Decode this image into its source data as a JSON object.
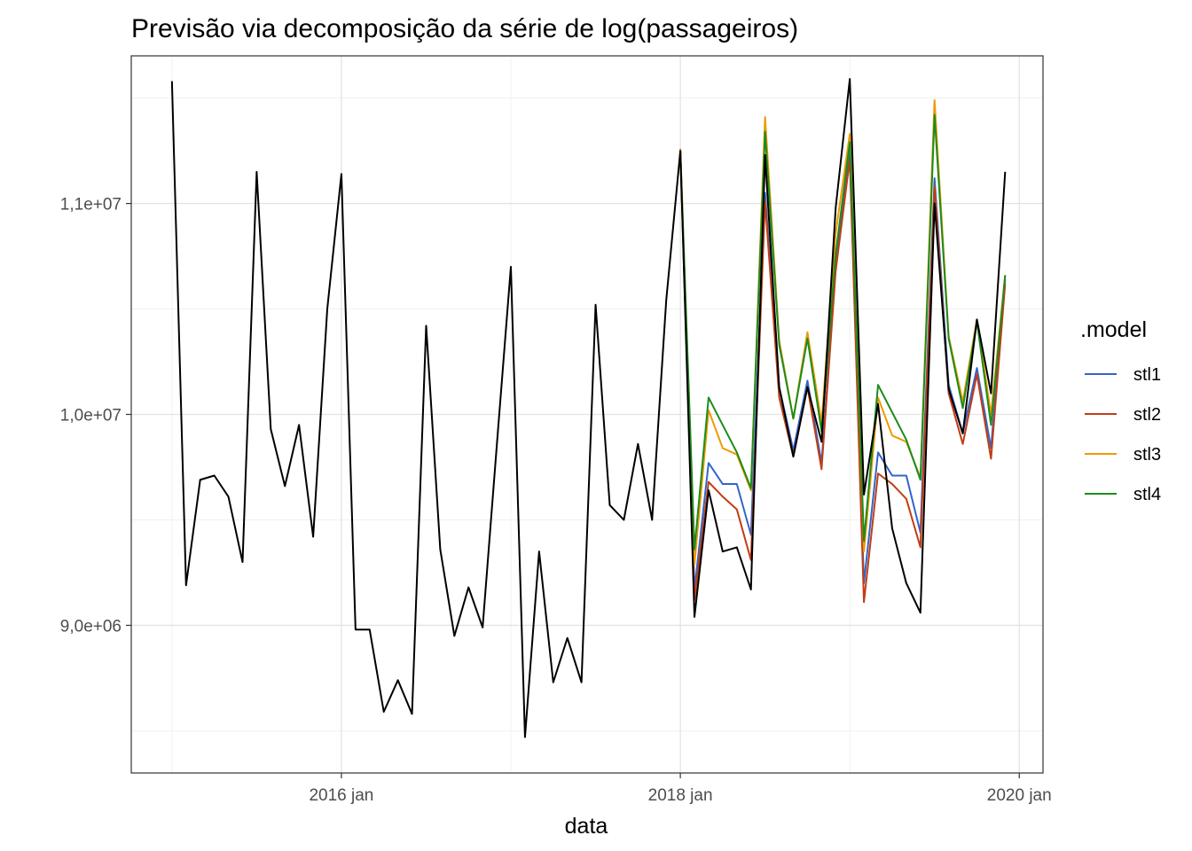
{
  "chart_data": {
    "type": "line",
    "title": "Previsão via decomposição da série de log(passageiros)",
    "xlabel": "data",
    "ylabel": "",
    "x_ticks": [
      {
        "label": "2016 jan",
        "value": 2016.0
      },
      {
        "label": "2018 jan",
        "value": 2018.0
      },
      {
        "label": "2020 jan",
        "value": 2020.0
      }
    ],
    "y_ticks": [
      {
        "label": "9,0e+06",
        "value": 9000000
      },
      {
        "label": "1,0e+07",
        "value": 10000000
      },
      {
        "label": "1,1e+07",
        "value": 11000000
      }
    ],
    "xlim": [
      2014.76,
      2020.14
    ],
    "ylim": [
      8300000,
      11700000
    ],
    "grid": true,
    "legend": {
      "title": ".model",
      "position": "right",
      "entries": [
        {
          "label": "stl1",
          "color": "#3465c7"
        },
        {
          "label": "stl2",
          "color": "#c13d15"
        },
        {
          "label": "stl3",
          "color": "#ee9a00"
        },
        {
          "label": "stl4",
          "color": "#1e8b1e"
        }
      ]
    },
    "observed": {
      "color": "#000000",
      "x_start": 2015.0,
      "step": 0.0833333,
      "values": [
        11580000,
        9190000,
        9690000,
        9710000,
        9610000,
        9300000,
        11150000,
        9930000,
        9660000,
        9950000,
        9420000,
        10500000,
        11140000,
        8980000,
        8980000,
        8590000,
        8740000,
        8580000,
        10420000,
        9360000,
        8950000,
        9180000,
        8990000,
        9850000,
        10700000,
        8470000,
        9350000,
        8730000,
        8940000,
        8730000,
        10520000,
        9570000,
        9500000,
        9860000,
        9500000,
        10540000,
        11250000,
        9040000,
        9640000,
        9350000,
        9370000,
        9170000,
        11230000,
        10130000,
        9800000,
        10130000,
        9870000,
        10980000,
        11590000,
        9620000,
        10050000,
        9460000,
        9200000,
        9060000,
        11000000,
        10120000,
        9910000,
        10450000,
        10100000,
        11150000
      ]
    },
    "series": [
      {
        "name": "stl1",
        "color": "#3465c7",
        "x_start": 2018.0,
        "step": 0.0833333,
        "values": [
          11250000,
          9170000,
          9770000,
          9670000,
          9670000,
          9430000,
          11050000,
          10130000,
          9830000,
          10160000,
          9770000,
          10700000,
          11230000,
          9200000,
          9820000,
          9710000,
          9710000,
          9440000,
          11120000,
          10140000,
          9910000,
          10220000,
          9840000,
          10640000
        ]
      },
      {
        "name": "stl2",
        "color": "#c13d15",
        "x_start": 2018.0,
        "step": 0.0833333,
        "values": [
          11250000,
          9120000,
          9680000,
          9610000,
          9550000,
          9310000,
          11010000,
          10080000,
          9800000,
          10130000,
          9740000,
          10680000,
          11210000,
          9110000,
          9720000,
          9670000,
          9600000,
          9370000,
          11080000,
          10100000,
          9860000,
          10190000,
          9790000,
          10620000
        ]
      },
      {
        "name": "stl3",
        "color": "#ee9a00",
        "x_start": 2018.0,
        "step": 0.0833333,
        "values": [
          11260000,
          9290000,
          10020000,
          9840000,
          9810000,
          9640000,
          11410000,
          10350000,
          9980000,
          10390000,
          9960000,
          10860000,
          11330000,
          9350000,
          10080000,
          9900000,
          9870000,
          9700000,
          11490000,
          10370000,
          10060000,
          10450000,
          10000000,
          10660000
        ]
      },
      {
        "name": "stl4",
        "color": "#1e8b1e",
        "x_start": 2018.0,
        "step": 0.0833333,
        "values": [
          11250000,
          9360000,
          10080000,
          9950000,
          9820000,
          9650000,
          11340000,
          10330000,
          9980000,
          10360000,
          9920000,
          10760000,
          11290000,
          9400000,
          10140000,
          10010000,
          9880000,
          9690000,
          11420000,
          10360000,
          10030000,
          10440000,
          9950000,
          10660000
        ]
      }
    ]
  }
}
